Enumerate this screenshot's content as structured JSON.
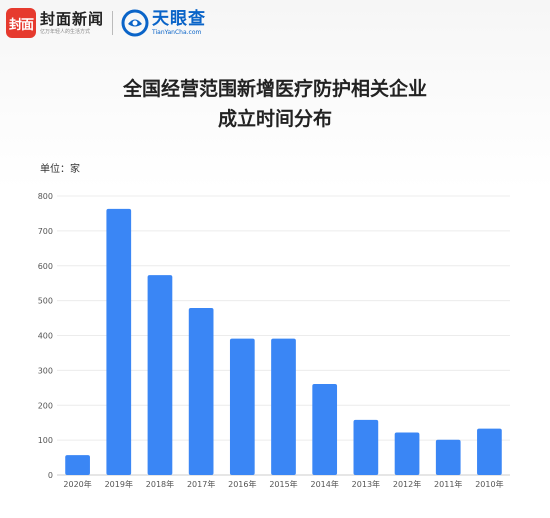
{
  "header": {
    "brand1_badge": "封面",
    "brand1_name": "封面新闻",
    "brand1_slogan": "亿万年轻人的生活方式",
    "brand2_name": "天眼查",
    "brand2_domain": "TianYanCha.com"
  },
  "chart_data": {
    "type": "bar",
    "title_line1": "全国经营范围新增医疗防护相关企业",
    "title_line2": "成立时间分布",
    "unit_label": "单位：家",
    "categories": [
      "2020年",
      "2019年",
      "2018年",
      "2017年",
      "2016年",
      "2015年",
      "2014年",
      "2013年",
      "2012年",
      "2011年",
      "2010年"
    ],
    "values": [
      57,
      763,
      573,
      479,
      391,
      391,
      261,
      158,
      122,
      101,
      133
    ],
    "ylim": [
      0,
      800
    ],
    "yticks": [
      0,
      100,
      200,
      300,
      400,
      500,
      600,
      700,
      800
    ],
    "bar_color": "#3a86f5",
    "grid": true
  }
}
